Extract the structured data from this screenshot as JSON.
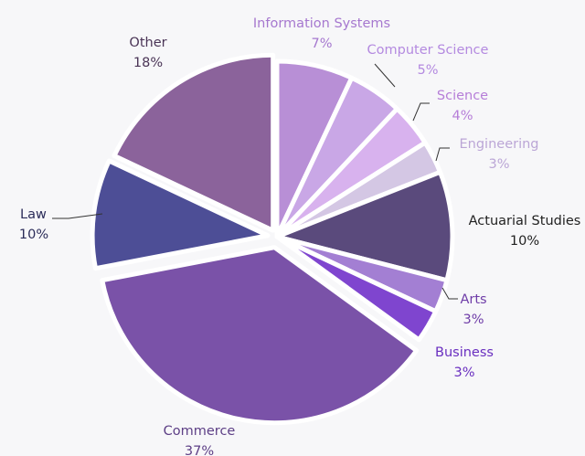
{
  "chart_data": {
    "type": "pie",
    "title": "",
    "slices": [
      {
        "label": "Information Systems",
        "value": 7,
        "display": "7%",
        "color": "#b88fd6",
        "labelColor": "#a678cf"
      },
      {
        "label": "Computer Science",
        "value": 5,
        "display": "5%",
        "color": "#c9a7e6",
        "labelColor": "#b48ae0"
      },
      {
        "label": "Science",
        "value": 4,
        "display": "4%",
        "color": "#d8b2ee",
        "labelColor": "#b67ed8"
      },
      {
        "label": "Engineering",
        "value": 3,
        "display": "3%",
        "color": "#d4c7e4",
        "labelColor": "#bba6d6"
      },
      {
        "label": "Actuarial Studies",
        "value": 10,
        "display": "10%",
        "color": "#5a4a7c",
        "labelColor": "#222222"
      },
      {
        "label": "Arts",
        "value": 3,
        "display": "3%",
        "color": "#a37fd3",
        "labelColor": "#6f3da8"
      },
      {
        "label": "Business",
        "value": 3,
        "display": "3%",
        "color": "#7f45cf",
        "labelColor": "#6a2fc0"
      },
      {
        "label": "Commerce",
        "value": 37,
        "display": "37%",
        "color": "#7a52a8",
        "labelColor": "#5d3f86"
      },
      {
        "label": "Law",
        "value": 10,
        "display": "10%",
        "color": "#4d4e96",
        "labelColor": "#2c2d5a"
      },
      {
        "label": "Other",
        "value": 18,
        "display": "18%",
        "color": "#8b639b",
        "labelColor": "#4a3456"
      }
    ]
  }
}
